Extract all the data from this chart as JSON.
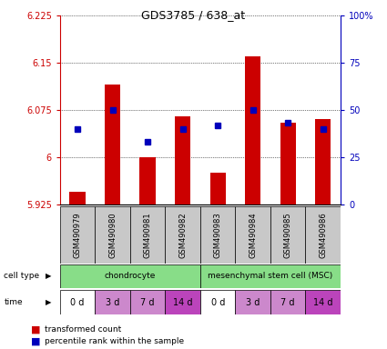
{
  "title": "GDS3785 / 638_at",
  "samples": [
    "GSM490979",
    "GSM490980",
    "GSM490981",
    "GSM490982",
    "GSM490983",
    "GSM490984",
    "GSM490985",
    "GSM490986"
  ],
  "red_values": [
    5.945,
    6.115,
    6.0,
    6.065,
    5.975,
    6.16,
    6.055,
    6.06
  ],
  "blue_values": [
    40,
    50,
    33,
    40,
    42,
    50,
    43,
    40
  ],
  "ylim_left": [
    5.925,
    6.225
  ],
  "ylim_right": [
    0,
    100
  ],
  "yticks_left": [
    5.925,
    6.0,
    6.075,
    6.15,
    6.225
  ],
  "yticks_right": [
    0,
    25,
    50,
    75,
    100
  ],
  "ytick_labels_left": [
    "5.925",
    "6",
    "6.075",
    "6.15",
    "6.225"
  ],
  "ytick_labels_right": [
    "0",
    "25",
    "50",
    "75",
    "100%"
  ],
  "time_labels": [
    "0 d",
    "3 d",
    "7 d",
    "14 d",
    "0 d",
    "3 d",
    "7 d",
    "14 d"
  ],
  "time_colors": [
    "#ffffff",
    "#CC88CC",
    "#CC88CC",
    "#BB44BB",
    "#ffffff",
    "#CC88CC",
    "#CC88CC",
    "#BB44BB"
  ],
  "ct_labels": [
    "chondrocyte",
    "mesenchymal stem cell (MSC)"
  ],
  "ct_color": "#88DD88",
  "bar_color": "#CC0000",
  "dot_color": "#0000BB",
  "left_axis_color": "#CC0000",
  "right_axis_color": "#0000BB",
  "sample_bg_color": "#C8C8C8",
  "legend_red_label": "transformed count",
  "legend_blue_label": "percentile rank within the sample",
  "cell_type_label": "cell type",
  "time_label": "time"
}
